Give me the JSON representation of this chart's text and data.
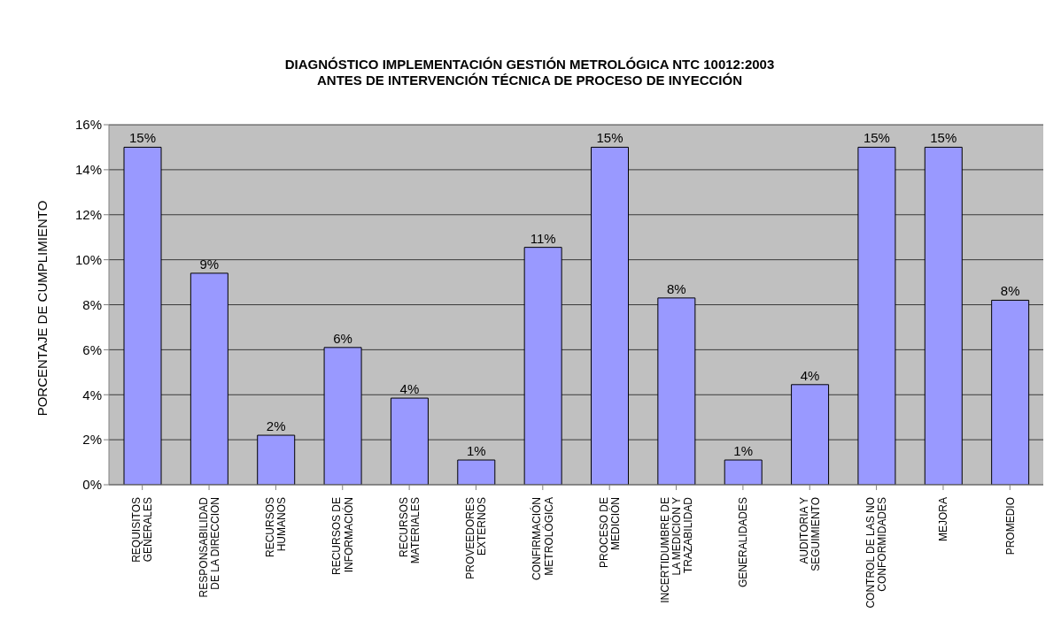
{
  "chart_data": {
    "type": "bar",
    "title": "DIAGNÓSTICO IMPLEMENTACIÓN GESTIÓN METROLÓGICA NTC 10012:2003\nANTES DE INTERVENCIÓN TÉCNICA DE PROCESO DE INYECCIÓN",
    "ylabel": "PORCENTAJE DE CUMPLIMIENTO",
    "categories": [
      "REQUISITOS\nGENERALES",
      "RESPONSABILIDAD\nDE LA DIRECCION",
      "RECURSOS\nHUMANOS",
      "RECURSOS DE\nINFORMACIÓN",
      "RECURSOS\nMATERIALES",
      "PROVEEDORES\nEXTERNOS",
      "CONFIRMACIÓN\nMETROLÓGICA",
      "PROCESO DE\nMEDICIÓN",
      "INCERTIDUMBRE DE\nLA MEDICIÓN Y\nTRAZABILIDAD",
      "GENERALIDADES",
      "AUDITORIA Y\nSEGUIMIENTO",
      "CONTROL DE LAS NO\nCONFORMIDADES",
      "MEJORA",
      "PROMEDIO"
    ],
    "values": [
      15,
      9.4,
      2.2,
      6.1,
      3.85,
      1.1,
      10.55,
      15,
      8.3,
      1.1,
      4.45,
      15,
      15,
      8.2
    ],
    "value_labels": [
      "15%",
      "9%",
      "2%",
      "6%",
      "4%",
      "1%",
      "11%",
      "15%",
      "8%",
      "1%",
      "4%",
      "15%",
      "15%",
      "8%"
    ],
    "color": "#9999ff",
    "ylim": [
      0,
      16
    ],
    "yticks": [
      {
        "value": 0,
        "label": "0%"
      },
      {
        "value": 2,
        "label": "2%"
      },
      {
        "value": 4,
        "label": "4%"
      },
      {
        "value": 6,
        "label": "6%"
      },
      {
        "value": 8,
        "label": "8%"
      },
      {
        "value": 10,
        "label": "10%"
      },
      {
        "value": 12,
        "label": "12%"
      },
      {
        "value": 14,
        "label": "14%"
      },
      {
        "value": 16,
        "label": "16%"
      }
    ],
    "grid": "y",
    "legend": false
  }
}
